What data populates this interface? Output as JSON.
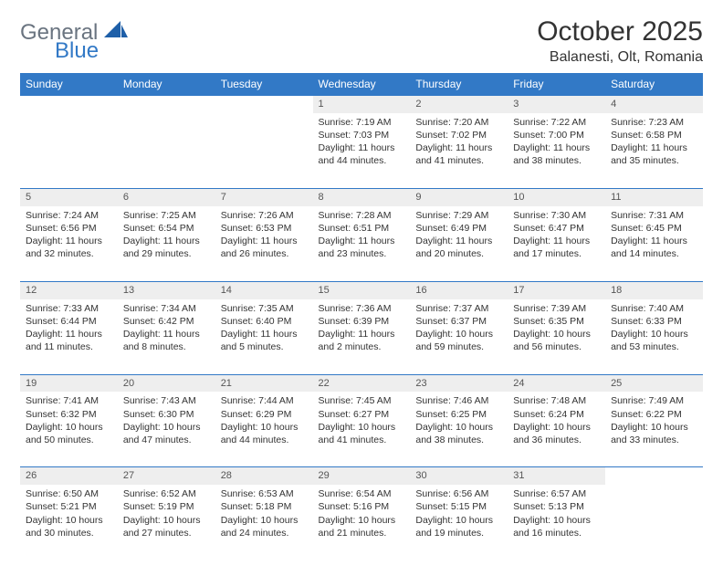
{
  "brand": {
    "word1": "General",
    "word2": "Blue",
    "logo_color": "#1e5fa8"
  },
  "title": "October 2025",
  "location": "Balanesti, Olt, Romania",
  "colors": {
    "header_bg": "#3279c6",
    "header_text": "#ffffff",
    "daynum_bg": "#eeeeee",
    "rule": "#3279c6",
    "text": "#333333",
    "logo_grey": "#6a7480",
    "logo_blue": "#3279c6",
    "page_bg": "#ffffff"
  },
  "typography": {
    "title_fontsize": 30,
    "location_fontsize": 16,
    "dayheader_fontsize": 12,
    "daynum_fontsize": 11,
    "body_fontsize": 10.5
  },
  "day_headers": [
    "Sunday",
    "Monday",
    "Tuesday",
    "Wednesday",
    "Thursday",
    "Friday",
    "Saturday"
  ],
  "weeks": [
    [
      null,
      null,
      null,
      {
        "n": "1",
        "sr": "7:19 AM",
        "ss": "7:03 PM",
        "dl": "11 hours and 44 minutes."
      },
      {
        "n": "2",
        "sr": "7:20 AM",
        "ss": "7:02 PM",
        "dl": "11 hours and 41 minutes."
      },
      {
        "n": "3",
        "sr": "7:22 AM",
        "ss": "7:00 PM",
        "dl": "11 hours and 38 minutes."
      },
      {
        "n": "4",
        "sr": "7:23 AM",
        "ss": "6:58 PM",
        "dl": "11 hours and 35 minutes."
      }
    ],
    [
      {
        "n": "5",
        "sr": "7:24 AM",
        "ss": "6:56 PM",
        "dl": "11 hours and 32 minutes."
      },
      {
        "n": "6",
        "sr": "7:25 AM",
        "ss": "6:54 PM",
        "dl": "11 hours and 29 minutes."
      },
      {
        "n": "7",
        "sr": "7:26 AM",
        "ss": "6:53 PM",
        "dl": "11 hours and 26 minutes."
      },
      {
        "n": "8",
        "sr": "7:28 AM",
        "ss": "6:51 PM",
        "dl": "11 hours and 23 minutes."
      },
      {
        "n": "9",
        "sr": "7:29 AM",
        "ss": "6:49 PM",
        "dl": "11 hours and 20 minutes."
      },
      {
        "n": "10",
        "sr": "7:30 AM",
        "ss": "6:47 PM",
        "dl": "11 hours and 17 minutes."
      },
      {
        "n": "11",
        "sr": "7:31 AM",
        "ss": "6:45 PM",
        "dl": "11 hours and 14 minutes."
      }
    ],
    [
      {
        "n": "12",
        "sr": "7:33 AM",
        "ss": "6:44 PM",
        "dl": "11 hours and 11 minutes."
      },
      {
        "n": "13",
        "sr": "7:34 AM",
        "ss": "6:42 PM",
        "dl": "11 hours and 8 minutes."
      },
      {
        "n": "14",
        "sr": "7:35 AM",
        "ss": "6:40 PM",
        "dl": "11 hours and 5 minutes."
      },
      {
        "n": "15",
        "sr": "7:36 AM",
        "ss": "6:39 PM",
        "dl": "11 hours and 2 minutes."
      },
      {
        "n": "16",
        "sr": "7:37 AM",
        "ss": "6:37 PM",
        "dl": "10 hours and 59 minutes."
      },
      {
        "n": "17",
        "sr": "7:39 AM",
        "ss": "6:35 PM",
        "dl": "10 hours and 56 minutes."
      },
      {
        "n": "18",
        "sr": "7:40 AM",
        "ss": "6:33 PM",
        "dl": "10 hours and 53 minutes."
      }
    ],
    [
      {
        "n": "19",
        "sr": "7:41 AM",
        "ss": "6:32 PM",
        "dl": "10 hours and 50 minutes."
      },
      {
        "n": "20",
        "sr": "7:43 AM",
        "ss": "6:30 PM",
        "dl": "10 hours and 47 minutes."
      },
      {
        "n": "21",
        "sr": "7:44 AM",
        "ss": "6:29 PM",
        "dl": "10 hours and 44 minutes."
      },
      {
        "n": "22",
        "sr": "7:45 AM",
        "ss": "6:27 PM",
        "dl": "10 hours and 41 minutes."
      },
      {
        "n": "23",
        "sr": "7:46 AM",
        "ss": "6:25 PM",
        "dl": "10 hours and 38 minutes."
      },
      {
        "n": "24",
        "sr": "7:48 AM",
        "ss": "6:24 PM",
        "dl": "10 hours and 36 minutes."
      },
      {
        "n": "25",
        "sr": "7:49 AM",
        "ss": "6:22 PM",
        "dl": "10 hours and 33 minutes."
      }
    ],
    [
      {
        "n": "26",
        "sr": "6:50 AM",
        "ss": "5:21 PM",
        "dl": "10 hours and 30 minutes."
      },
      {
        "n": "27",
        "sr": "6:52 AM",
        "ss": "5:19 PM",
        "dl": "10 hours and 27 minutes."
      },
      {
        "n": "28",
        "sr": "6:53 AM",
        "ss": "5:18 PM",
        "dl": "10 hours and 24 minutes."
      },
      {
        "n": "29",
        "sr": "6:54 AM",
        "ss": "5:16 PM",
        "dl": "10 hours and 21 minutes."
      },
      {
        "n": "30",
        "sr": "6:56 AM",
        "ss": "5:15 PM",
        "dl": "10 hours and 19 minutes."
      },
      {
        "n": "31",
        "sr": "6:57 AM",
        "ss": "5:13 PM",
        "dl": "10 hours and 16 minutes."
      },
      null
    ]
  ],
  "labels": {
    "sunrise": "Sunrise: ",
    "sunset": "Sunset: ",
    "daylight": "Daylight: "
  }
}
